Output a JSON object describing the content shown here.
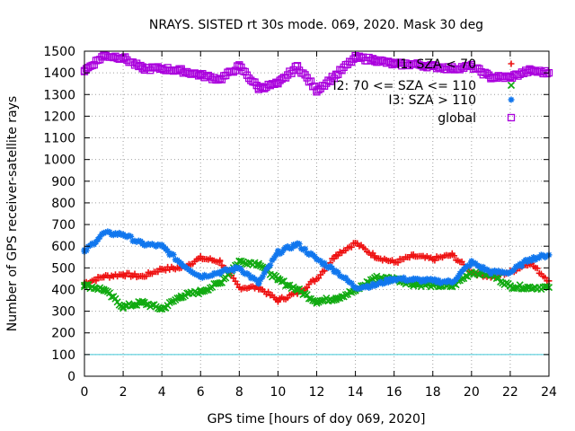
{
  "chart_data": {
    "type": "scatter",
    "title": "NRAYS. SISTED rt 30s mode. 069, 2020. Mask 30 deg",
    "xlabel": "GPS time [hours of doy 069, 2020]",
    "ylabel": "Number of GPS receiver-satellite rays",
    "xlim": [
      0,
      24
    ],
    "ylim": [
      0,
      1500
    ],
    "xticks": [
      0,
      2,
      4,
      6,
      8,
      10,
      12,
      14,
      16,
      18,
      20,
      22,
      24
    ],
    "yticks": [
      0,
      100,
      200,
      300,
      400,
      500,
      600,
      700,
      800,
      900,
      1000,
      1100,
      1200,
      1300,
      1400,
      1500
    ],
    "grid": true,
    "legend_position": "top-right",
    "reference_line": {
      "y": 100,
      "color": "#40c8d8"
    },
    "series": [
      {
        "name": "I1: SZA < 70",
        "legend_label": "I1: SZA < 70",
        "marker": "+",
        "color": "#ee1111",
        "x": [
          0,
          1,
          2,
          3,
          4,
          5,
          6,
          7,
          8,
          9,
          10,
          11,
          12,
          13,
          14,
          15,
          16,
          17,
          18,
          19,
          20,
          21,
          22,
          23,
          24
        ],
        "y": [
          430,
          460,
          470,
          460,
          495,
          500,
          545,
          530,
          410,
          410,
          350,
          385,
          450,
          560,
          615,
          555,
          525,
          555,
          540,
          560,
          480,
          460,
          480,
          525,
          440
        ]
      },
      {
        "name": "I2: 70 <= SZA <= 110",
        "legend_label": "I2: 70 <= SZA <= 110",
        "marker": "x",
        "color": "#11aa11",
        "x": [
          0,
          1,
          2,
          3,
          4,
          5,
          6,
          7,
          8,
          9,
          10,
          11,
          12,
          13,
          14,
          15,
          16,
          17,
          18,
          19,
          20,
          21,
          22,
          23,
          24
        ],
        "y": [
          420,
          400,
          320,
          340,
          310,
          370,
          390,
          430,
          530,
          520,
          445,
          400,
          345,
          360,
          395,
          455,
          450,
          425,
          420,
          415,
          480,
          470,
          415,
          410,
          410
        ]
      },
      {
        "name": "I3: SZA > 110",
        "legend_label": "I3: SZA > 110",
        "marker": "*",
        "color": "#1177ee",
        "x": [
          0,
          1,
          2,
          3,
          4,
          5,
          6,
          7,
          8,
          9,
          10,
          11,
          12,
          13,
          14,
          15,
          16,
          17,
          18,
          19,
          20,
          21,
          22,
          23,
          24
        ],
        "y": [
          575,
          660,
          655,
          610,
          600,
          520,
          460,
          480,
          500,
          430,
          570,
          610,
          540,
          485,
          410,
          420,
          450,
          445,
          440,
          435,
          525,
          480,
          480,
          540,
          560
        ]
      },
      {
        "name": "global",
        "legend_label": "global",
        "marker": "square",
        "color": "#aa00dd",
        "x": [
          0,
          1,
          2,
          3,
          4,
          5,
          6,
          7,
          8,
          9,
          10,
          11,
          12,
          13,
          14,
          15,
          16,
          17,
          18,
          19,
          20,
          21,
          22,
          23,
          24
        ],
        "y": [
          1410,
          1480,
          1470,
          1420,
          1420,
          1410,
          1390,
          1370,
          1430,
          1330,
          1350,
          1430,
          1320,
          1390,
          1470,
          1460,
          1440,
          1440,
          1430,
          1420,
          1430,
          1380,
          1380,
          1410,
          1400
        ]
      }
    ]
  }
}
